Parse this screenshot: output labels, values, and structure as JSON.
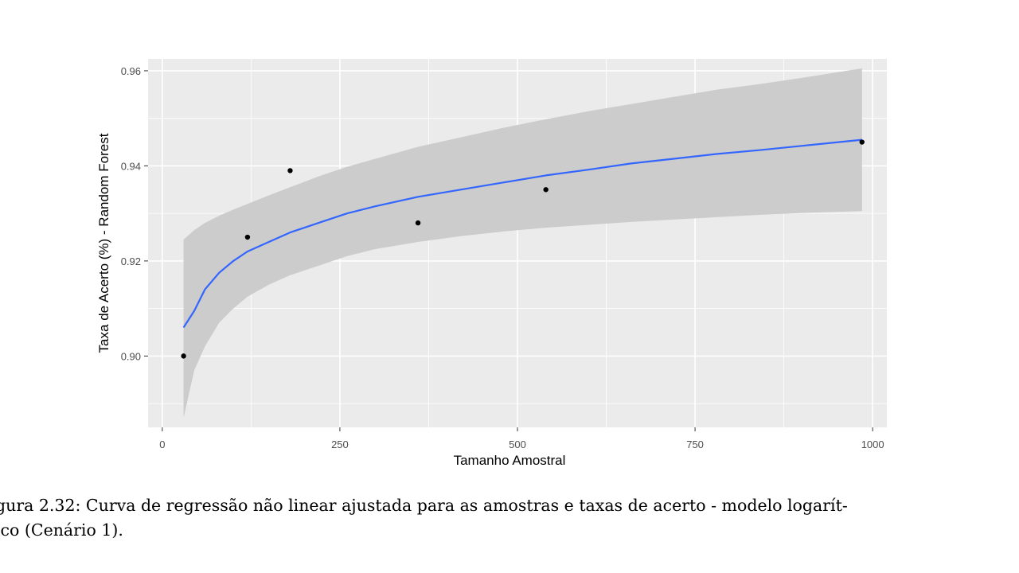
{
  "chart_data": {
    "type": "scatter",
    "title": "",
    "xlabel": "Tamanho Amostral",
    "ylabel": "Taxa de Acerto (%) - Random Forest",
    "xlim": [
      -20,
      1020
    ],
    "ylim": [
      0.885,
      0.9625
    ],
    "x_ticks": [
      0,
      250,
      500,
      750,
      1000
    ],
    "x_tick_labels": [
      "0",
      "250",
      "500",
      "750",
      "1000"
    ],
    "y_ticks": [
      0.9,
      0.92,
      0.94,
      0.96
    ],
    "y_tick_labels": [
      "0.90",
      "0.92",
      "0.94",
      "0.96"
    ],
    "grid": true,
    "points": {
      "x": [
        30,
        120,
        180,
        360,
        540,
        985
      ],
      "y": [
        0.9,
        0.925,
        0.939,
        0.928,
        0.935,
        0.945
      ]
    },
    "fit": {
      "model": "logarithmic",
      "x": [
        30,
        45,
        60,
        80,
        100,
        120,
        150,
        180,
        220,
        260,
        300,
        360,
        420,
        480,
        540,
        600,
        660,
        720,
        780,
        840,
        900,
        985
      ],
      "y": [
        0.906,
        0.9095,
        0.914,
        0.9175,
        0.92,
        0.922,
        0.924,
        0.926,
        0.928,
        0.93,
        0.9315,
        0.9335,
        0.935,
        0.9365,
        0.938,
        0.9392,
        0.9405,
        0.9415,
        0.9425,
        0.9433,
        0.9442,
        0.9455
      ],
      "lower": [
        0.887,
        0.897,
        0.902,
        0.907,
        0.91,
        0.9125,
        0.915,
        0.917,
        0.919,
        0.921,
        0.9225,
        0.924,
        0.9252,
        0.9262,
        0.927,
        0.9276,
        0.9282,
        0.9287,
        0.9292,
        0.9297,
        0.9301,
        0.9305
      ],
      "upper": [
        0.9245,
        0.9265,
        0.928,
        0.9295,
        0.9308,
        0.932,
        0.9338,
        0.9355,
        0.9378,
        0.9398,
        0.9415,
        0.944,
        0.946,
        0.948,
        0.9498,
        0.9515,
        0.953,
        0.9545,
        0.956,
        0.9572,
        0.9585,
        0.9605
      ]
    },
    "colors": {
      "panel": "#ebebeb",
      "grid": "#ffffff",
      "band": "#cccccc",
      "line": "#3366ff",
      "points": "#000000"
    }
  },
  "caption": {
    "line1": "gura 2.32: Curva de regressão não linear ajustada para as amostras e taxas de acerto - modelo logarít-",
    "line2": "ico (Cenário 1)."
  }
}
